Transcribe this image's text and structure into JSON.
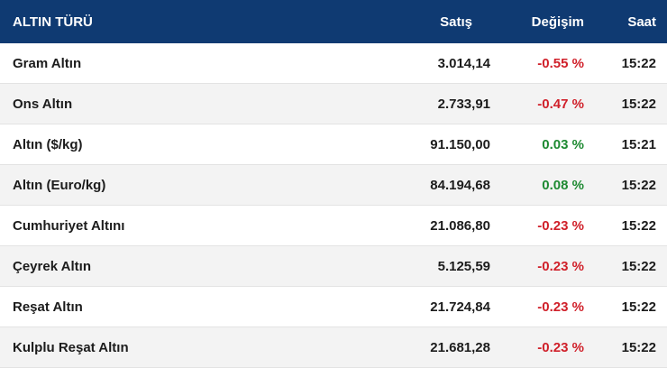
{
  "header": {
    "name": "ALTIN TÜRÜ",
    "price": "Satış",
    "change": "Değişim",
    "time": "Saat"
  },
  "rows": [
    {
      "name": "Gram Altın",
      "price": "3.014,14",
      "change": "-0.55 %",
      "time": "15:22",
      "direction": "negative"
    },
    {
      "name": "Ons Altın",
      "price": "2.733,91",
      "change": "-0.47 %",
      "time": "15:22",
      "direction": "negative"
    },
    {
      "name": "Altın ($/kg)",
      "price": "91.150,00",
      "change": "0.03 %",
      "time": "15:21",
      "direction": "positive"
    },
    {
      "name": "Altın (Euro/kg)",
      "price": "84.194,68",
      "change": "0.08 %",
      "time": "15:22",
      "direction": "positive"
    },
    {
      "name": "Cumhuriyet Altını",
      "price": "21.086,80",
      "change": "-0.23 %",
      "time": "15:22",
      "direction": "negative"
    },
    {
      "name": "Çeyrek Altın",
      "price": "5.125,59",
      "change": "-0.23 %",
      "time": "15:22",
      "direction": "negative"
    },
    {
      "name": "Reşat Altın",
      "price": "21.724,84",
      "change": "-0.23 %",
      "time": "15:22",
      "direction": "negative"
    },
    {
      "name": "Kulplu Reşat Altın",
      "price": "21.681,28",
      "change": "-0.23 %",
      "time": "15:22",
      "direction": "negative"
    }
  ],
  "colors": {
    "header_bg": "#0f3a72",
    "negative": "#d0202a",
    "positive": "#1e8a32"
  }
}
